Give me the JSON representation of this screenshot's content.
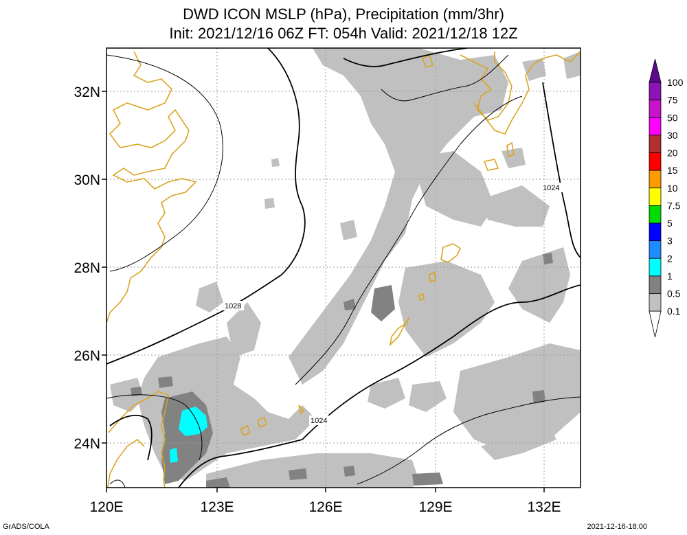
{
  "title_line1": "DWD ICON MSLP (hPa), Precipitation (mm/3hr)",
  "title_line2": "Init: 2021/12/16 06Z  FT: 054h  Valid: 2021/12/18 12Z",
  "lat_labels": [
    "32N",
    "30N",
    "28N",
    "26N",
    "24N"
  ],
  "lon_labels": [
    "120E",
    "123E",
    "126E",
    "129E",
    "132E"
  ],
  "isobar_labels": [
    "1028",
    "1024",
    "1024"
  ],
  "colorbar": {
    "labels": [
      "100",
      "75",
      "50",
      "30",
      "20",
      "15",
      "10",
      "7.5",
      "5",
      "3",
      "2",
      "1",
      "0.5",
      "0.1"
    ],
    "colors": [
      "#5a0a8c",
      "#8c14b4",
      "#c814c8",
      "#ff00ff",
      "#b03030",
      "#ff0000",
      "#ff9b00",
      "#ffff00",
      "#00dc00",
      "#0000ff",
      "#1e8cff",
      "#00ffff",
      "#828282",
      "#c0c0c0",
      "#ffffff"
    ]
  },
  "colors": {
    "coastline": "#d9a521",
    "precip_light": "#c0c0c0",
    "precip_mid": "#828282",
    "precip_heavy": "#00ffff",
    "isobar": "#000000",
    "grid": "#9a9a9a"
  },
  "footer_left": "GrADS/COLA",
  "footer_right": "2021-12-16-18:00"
}
